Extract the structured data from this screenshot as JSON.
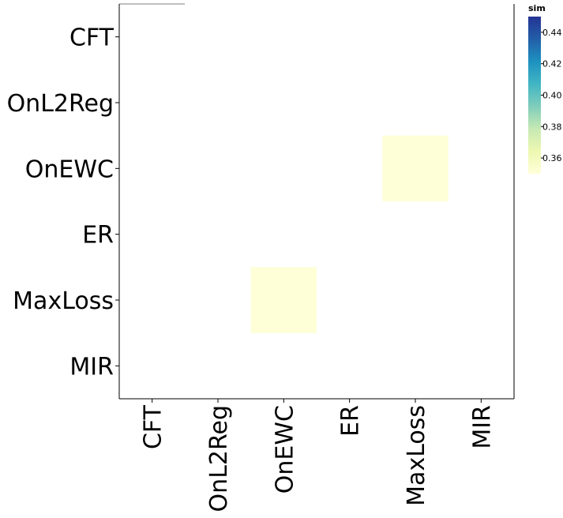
{
  "chart_data": {
    "type": "heatmap",
    "title": "",
    "xlabel": "",
    "ylabel": "",
    "x_categories": [
      "CFT",
      "OnL2Reg",
      "OnEWC",
      "ER",
      "MaxLoss",
      "MIR"
    ],
    "y_categories": [
      "CFT",
      "OnL2Reg",
      "OnEWC",
      "ER",
      "MaxLoss",
      "MIR"
    ],
    "cells": [
      {
        "x": "OnEWC",
        "y": "MaxLoss",
        "value": 0.351
      },
      {
        "x": "MaxLoss",
        "y": "OnEWC",
        "value": 0.351
      }
    ],
    "colorbar": {
      "title": "sim",
      "range": [
        0.35,
        0.45
      ],
      "ticks": [
        "0.36",
        "0.38",
        "0.40",
        "0.42",
        "0.44"
      ],
      "tick_values": [
        0.36,
        0.38,
        0.4,
        0.42,
        0.44
      ],
      "colormap": [
        "#ffffd9",
        "#edf8b1",
        "#c7e9b4",
        "#7fcdbb",
        "#41b6c4",
        "#1d91c0",
        "#225ea8",
        "#253494"
      ]
    },
    "grid": false,
    "legend_position": "right"
  }
}
